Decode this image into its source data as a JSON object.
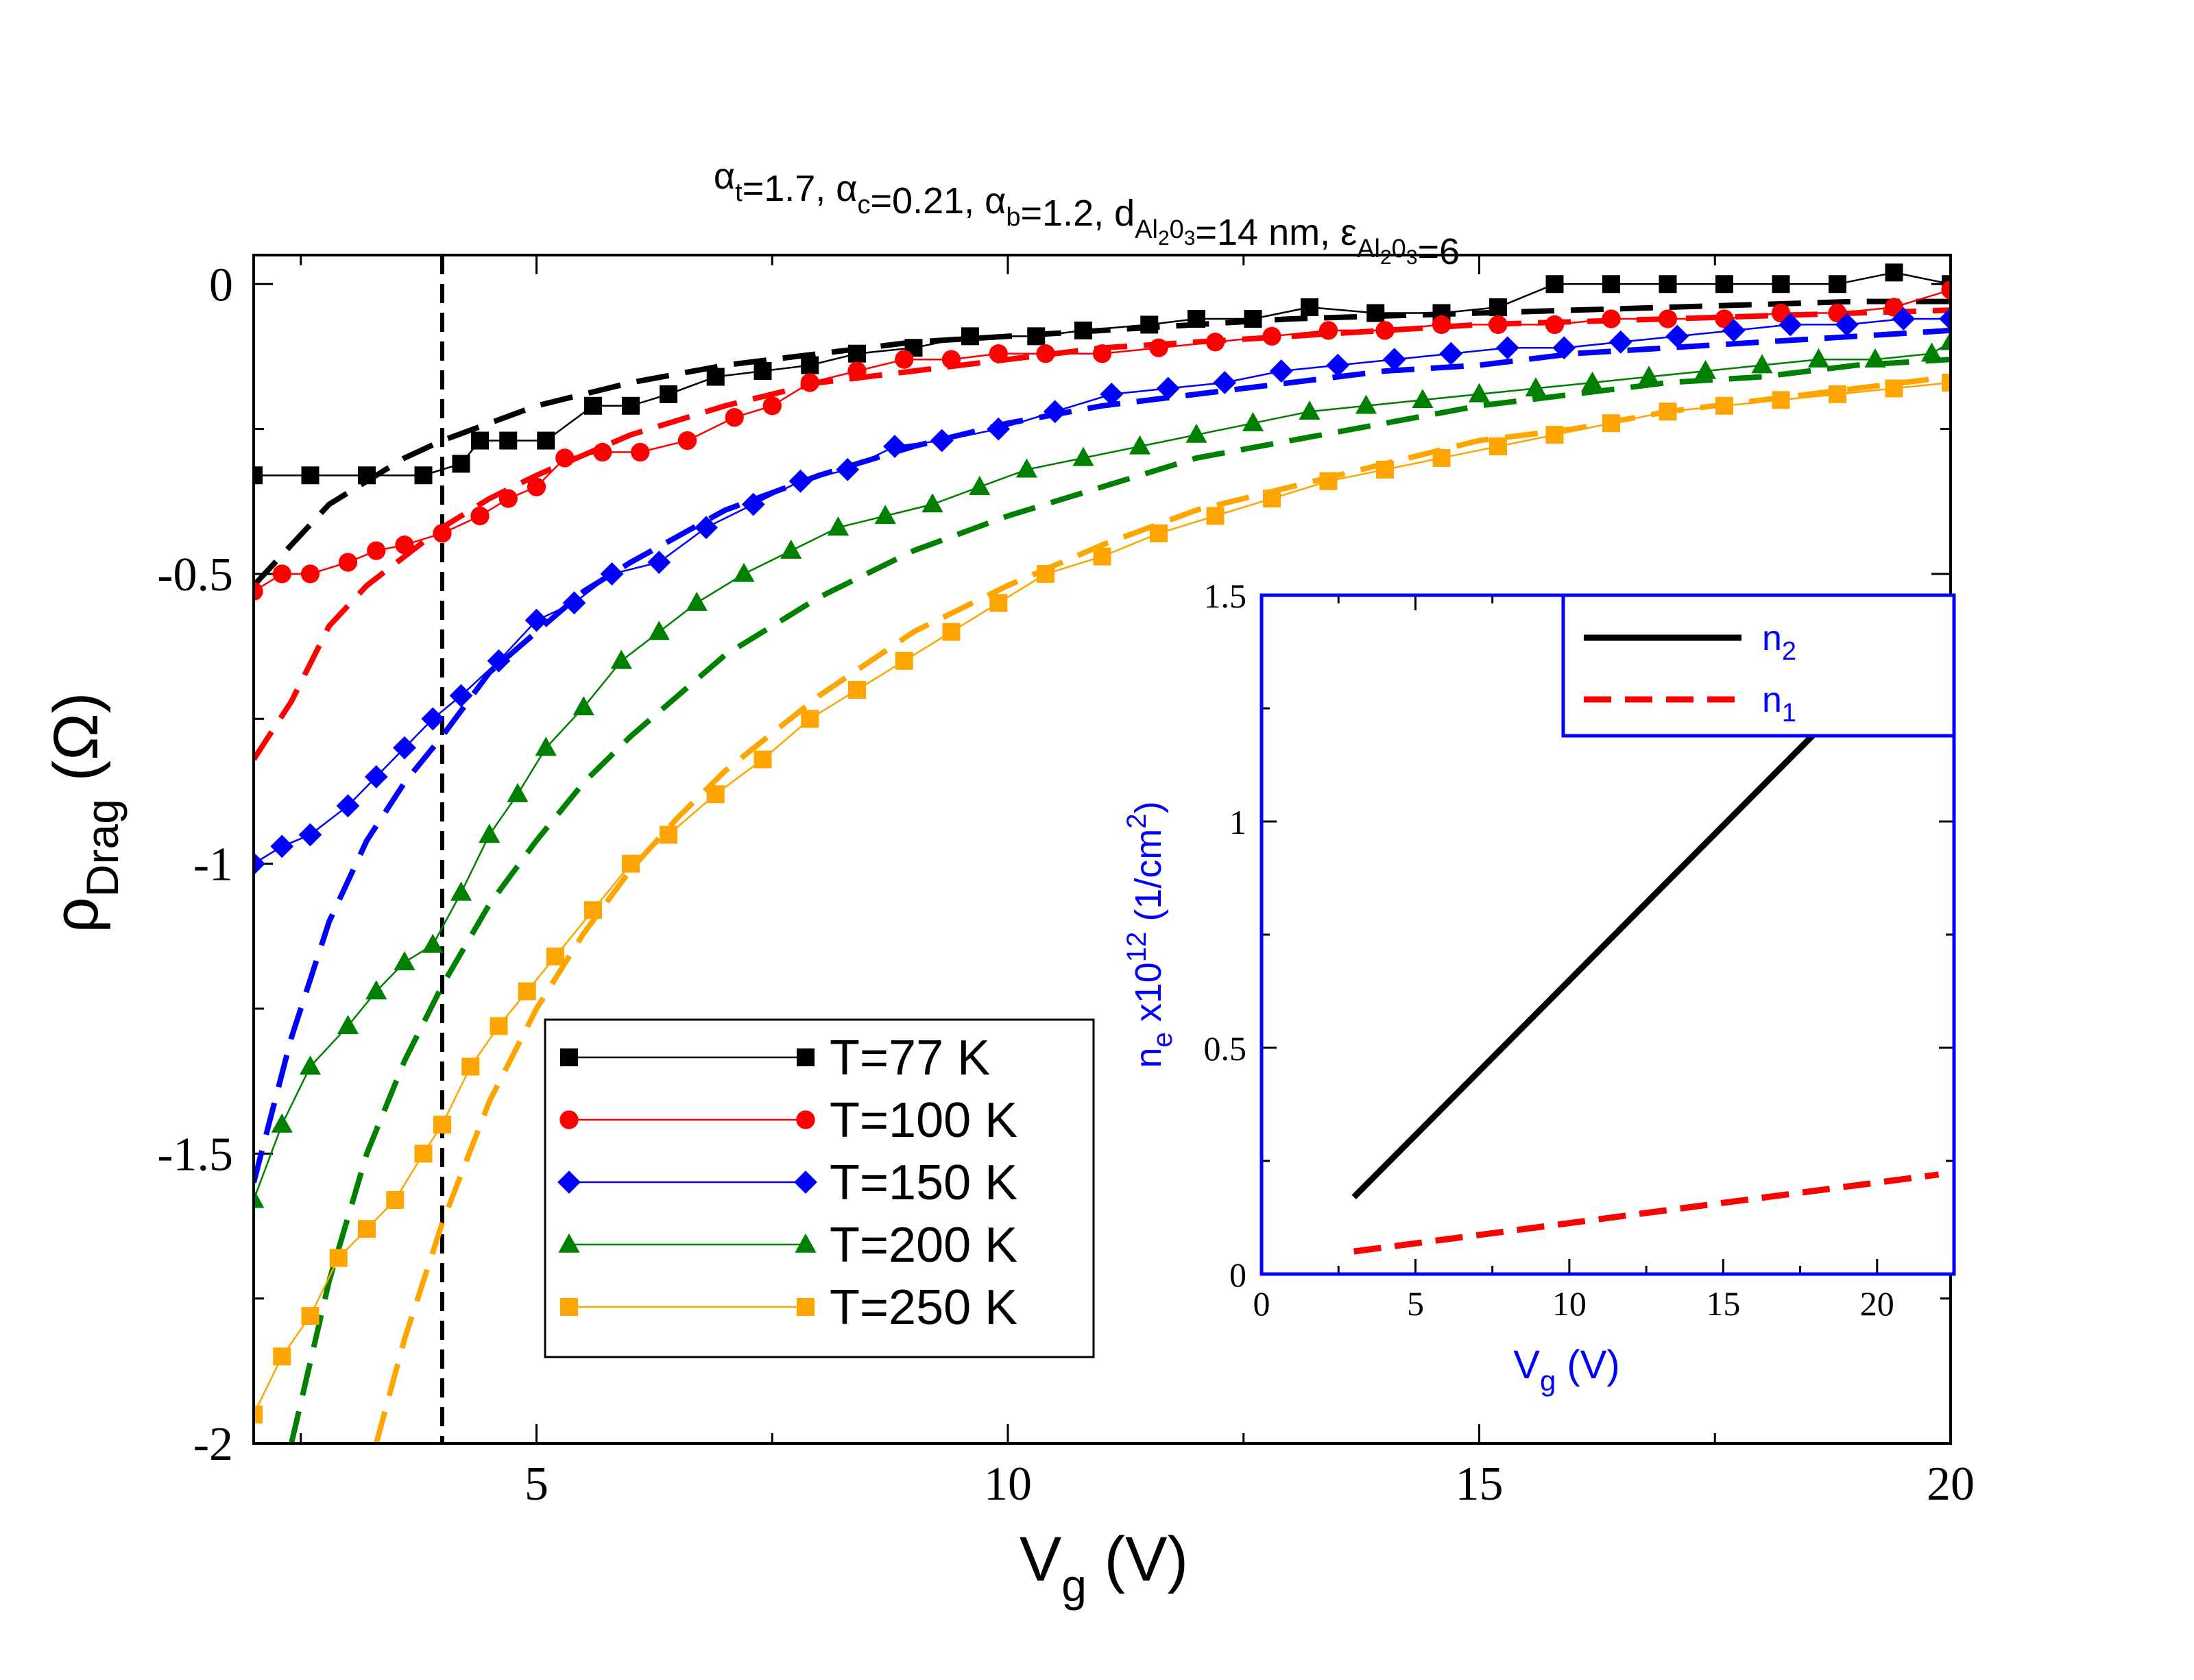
{
  "chart_data": [
    {
      "type": "line",
      "title": {
        "parts": [
          {
            "t": "α",
            "sub": "t"
          },
          {
            "t": "=1.7, "
          },
          {
            "t": "α",
            "sub": "c"
          },
          {
            "t": "=0.21, "
          },
          {
            "t": "α",
            "sub": "b"
          },
          {
            "t": "=1.2, "
          },
          {
            "t": "d",
            "sub": "Al",
            "sub2": "2",
            "sub3": "0",
            "sub4": "3"
          },
          {
            "t": "=14 nm, "
          },
          {
            "t": "ε",
            "sub": "Al",
            "sub2": "2",
            "sub3": "0",
            "sub4": "3"
          },
          {
            "t": "=6"
          }
        ]
      },
      "xlabel": {
        "main": "V",
        "sub": "g",
        "unit": "(V)"
      },
      "ylabel": {
        "main": "ρ",
        "sub": "Drag",
        "unit": "(Ω)"
      },
      "xlim": [
        2,
        20
      ],
      "ylim": [
        -2,
        0.05
      ],
      "x_ticks": [
        5,
        10,
        15,
        20
      ],
      "x_tick_labels": [
        "5",
        "10",
        "15",
        "20"
      ],
      "y_ticks": [
        0,
        -0.5,
        -1,
        -1.5,
        -2
      ],
      "y_tick_labels": [
        "0",
        "-0.5",
        "-1",
        "-1.5",
        "-2"
      ],
      "vline_x": 4,
      "legend_position": "bottom-center",
      "series": [
        {
          "name": "T=77 K",
          "color": "#000000",
          "marker": "square",
          "x": [
            2,
            2.6,
            3.2,
            3.8,
            4.2,
            4.4,
            4.7,
            5.1,
            5.6,
            6.0,
            6.4,
            6.9,
            7.4,
            7.9,
            8.4,
            9.0,
            9.6,
            10.3,
            10.8,
            11.5,
            12.0,
            12.6,
            13.2,
            13.9,
            14.6,
            15.2,
            15.8,
            16.4,
            17.0,
            17.6,
            18.2,
            18.8,
            19.4,
            20.0
          ],
          "y": [
            -0.33,
            -0.33,
            -0.33,
            -0.33,
            -0.31,
            -0.27,
            -0.27,
            -0.27,
            -0.21,
            -0.21,
            -0.19,
            -0.16,
            -0.15,
            -0.14,
            -0.12,
            -0.11,
            -0.09,
            -0.09,
            -0.08,
            -0.07,
            -0.06,
            -0.06,
            -0.04,
            -0.05,
            -0.05,
            -0.04,
            0.0,
            0.0,
            0.0,
            0.0,
            0.0,
            0.0,
            0.02,
            0.0
          ]
        },
        {
          "name": "T=100 K",
          "color": "#ff0000",
          "marker": "circle",
          "x": [
            2,
            2.3,
            2.6,
            3.0,
            3.3,
            3.6,
            4.0,
            4.4,
            4.7,
            5.0,
            5.3,
            5.7,
            6.1,
            6.6,
            7.1,
            7.5,
            7.9,
            8.4,
            8.9,
            9.4,
            9.9,
            10.4,
            11.0,
            11.6,
            12.2,
            12.8,
            13.4,
            14.0,
            14.6,
            15.2,
            15.8,
            16.4,
            17.0,
            17.6,
            18.2,
            18.8,
            19.4,
            20.0
          ],
          "y": [
            -0.53,
            -0.5,
            -0.5,
            -0.48,
            -0.46,
            -0.45,
            -0.43,
            -0.4,
            -0.37,
            -0.35,
            -0.3,
            -0.29,
            -0.29,
            -0.27,
            -0.23,
            -0.21,
            -0.17,
            -0.15,
            -0.13,
            -0.13,
            -0.12,
            -0.12,
            -0.12,
            -0.11,
            -0.1,
            -0.09,
            -0.08,
            -0.08,
            -0.07,
            -0.07,
            -0.07,
            -0.06,
            -0.06,
            -0.06,
            -0.05,
            -0.05,
            -0.04,
            -0.01
          ]
        },
        {
          "name": "T=150 K",
          "color": "#0000ff",
          "marker": "diamond",
          "x": [
            2,
            2.3,
            2.6,
            3.0,
            3.3,
            3.6,
            3.9,
            4.2,
            4.6,
            5.0,
            5.4,
            5.8,
            6.3,
            6.8,
            7.3,
            7.8,
            8.3,
            8.8,
            9.3,
            9.9,
            10.5,
            11.1,
            11.7,
            12.3,
            12.9,
            13.5,
            14.1,
            14.7,
            15.3,
            15.9,
            16.5,
            17.1,
            17.7,
            18.3,
            18.9,
            19.5,
            20.0
          ],
          "y": [
            -1.0,
            -0.97,
            -0.95,
            -0.9,
            -0.85,
            -0.8,
            -0.75,
            -0.71,
            -0.65,
            -0.58,
            -0.55,
            -0.5,
            -0.48,
            -0.42,
            -0.38,
            -0.34,
            -0.32,
            -0.28,
            -0.27,
            -0.25,
            -0.22,
            -0.19,
            -0.18,
            -0.17,
            -0.15,
            -0.14,
            -0.13,
            -0.12,
            -0.11,
            -0.11,
            -0.1,
            -0.09,
            -0.08,
            -0.07,
            -0.07,
            -0.06,
            -0.06
          ]
        },
        {
          "name": "T=200 K",
          "color": "#008000",
          "marker": "triangle",
          "x": [
            2,
            2.3,
            2.6,
            3.0,
            3.3,
            3.6,
            3.9,
            4.2,
            4.5,
            4.8,
            5.1,
            5.5,
            5.9,
            6.3,
            6.7,
            7.2,
            7.7,
            8.2,
            8.7,
            9.2,
            9.7,
            10.2,
            10.8,
            11.4,
            12.0,
            12.6,
            13.2,
            13.8,
            14.4,
            15.0,
            15.6,
            16.2,
            16.8,
            17.4,
            18.0,
            18.6,
            19.2,
            19.8,
            20.0
          ],
          "y": [
            -1.58,
            -1.45,
            -1.35,
            -1.28,
            -1.22,
            -1.17,
            -1.14,
            -1.05,
            -0.95,
            -0.88,
            -0.8,
            -0.73,
            -0.65,
            -0.6,
            -0.55,
            -0.5,
            -0.46,
            -0.42,
            -0.4,
            -0.38,
            -0.35,
            -0.32,
            -0.3,
            -0.28,
            -0.26,
            -0.24,
            -0.22,
            -0.21,
            -0.2,
            -0.19,
            -0.18,
            -0.17,
            -0.16,
            -0.15,
            -0.14,
            -0.13,
            -0.13,
            -0.12,
            -0.1
          ]
        },
        {
          "name": "T=250 K",
          "color": "#ffa500",
          "marker": "square",
          "x": [
            2,
            2.3,
            2.6,
            2.9,
            3.2,
            3.5,
            3.8,
            4.0,
            4.3,
            4.6,
            4.9,
            5.2,
            5.6,
            6.0,
            6.4,
            6.9,
            7.4,
            7.9,
            8.4,
            8.9,
            9.4,
            9.9,
            10.4,
            11.0,
            11.6,
            12.2,
            12.8,
            13.4,
            14.0,
            14.6,
            15.2,
            15.8,
            16.4,
            17.0,
            17.6,
            18.2,
            18.8,
            19.4,
            20.0
          ],
          "y": [
            -1.95,
            -1.85,
            -1.78,
            -1.68,
            -1.63,
            -1.58,
            -1.5,
            -1.45,
            -1.35,
            -1.28,
            -1.22,
            -1.16,
            -1.08,
            -1.0,
            -0.95,
            -0.88,
            -0.82,
            -0.75,
            -0.7,
            -0.65,
            -0.6,
            -0.55,
            -0.5,
            -0.47,
            -0.43,
            -0.4,
            -0.37,
            -0.34,
            -0.32,
            -0.3,
            -0.28,
            -0.26,
            -0.24,
            -0.22,
            -0.21,
            -0.2,
            -0.19,
            -0.18,
            -0.17
          ]
        }
      ],
      "theory_series": [
        {
          "color": "#000000",
          "x": [
            2,
            2.4,
            2.8,
            3.2,
            3.6,
            4.0,
            4.5,
            5.0,
            6.0,
            7.0,
            8.0,
            9.0,
            10.0,
            11.0,
            12.0,
            13.0,
            14.0,
            15.0,
            16.0,
            17.0,
            18.0,
            19.0,
            20.0
          ],
          "y": [
            -0.52,
            -0.45,
            -0.38,
            -0.34,
            -0.3,
            -0.27,
            -0.24,
            -0.21,
            -0.17,
            -0.14,
            -0.12,
            -0.1,
            -0.09,
            -0.08,
            -0.07,
            -0.06,
            -0.055,
            -0.05,
            -0.045,
            -0.04,
            -0.035,
            -0.03,
            -0.03
          ]
        },
        {
          "color": "#ff0000",
          "x": [
            2,
            2.4,
            2.8,
            3.2,
            3.6,
            4.0,
            4.5,
            5.0,
            6.0,
            7.0,
            8.0,
            9.0,
            10.0,
            11.0,
            12.0,
            13.0,
            14.0,
            15.0,
            16.0,
            17.0,
            18.0,
            19.0,
            20.0
          ],
          "y": [
            -0.82,
            -0.72,
            -0.59,
            -0.52,
            -0.47,
            -0.42,
            -0.37,
            -0.33,
            -0.26,
            -0.21,
            -0.17,
            -0.15,
            -0.13,
            -0.11,
            -0.1,
            -0.09,
            -0.08,
            -0.07,
            -0.065,
            -0.06,
            -0.055,
            -0.05,
            -0.045
          ]
        },
        {
          "color": "#0000ff",
          "x": [
            2,
            2.4,
            2.8,
            3.2,
            3.6,
            4.0,
            4.5,
            5.0,
            5.5,
            6.0,
            7.0,
            8.0,
            9.0,
            10.0,
            11.0,
            12.0,
            13.0,
            14.0,
            15.0,
            16.0,
            17.0,
            18.0,
            19.0,
            20.0
          ],
          "y": [
            -1.55,
            -1.3,
            -1.1,
            -0.96,
            -0.86,
            -0.78,
            -0.67,
            -0.6,
            -0.53,
            -0.48,
            -0.39,
            -0.33,
            -0.28,
            -0.24,
            -0.21,
            -0.19,
            -0.17,
            -0.15,
            -0.14,
            -0.12,
            -0.11,
            -0.1,
            -0.09,
            -0.08
          ]
        },
        {
          "color": "#008000",
          "x": [
            2.4,
            2.8,
            3.2,
            3.6,
            4.0,
            4.5,
            5.0,
            5.5,
            6.0,
            7.0,
            8.0,
            9.0,
            10.0,
            11.0,
            12.0,
            13.0,
            14.0,
            15.0,
            16.0,
            17.0,
            18.0,
            19.0,
            20.0
          ],
          "y": [
            -2.0,
            -1.72,
            -1.5,
            -1.34,
            -1.21,
            -1.07,
            -0.96,
            -0.86,
            -0.78,
            -0.64,
            -0.54,
            -0.46,
            -0.4,
            -0.35,
            -0.3,
            -0.27,
            -0.24,
            -0.21,
            -0.19,
            -0.17,
            -0.16,
            -0.14,
            -0.13
          ]
        },
        {
          "color": "#ffa500",
          "x": [
            3.3,
            3.6,
            4.0,
            4.5,
            5.0,
            5.5,
            6.0,
            6.5,
            7.0,
            8.0,
            9.0,
            10.0,
            11.0,
            12.0,
            13.0,
            14.0,
            15.0,
            16.0,
            17.0,
            18.0,
            19.0,
            20.0
          ],
          "y": [
            -2.0,
            -1.82,
            -1.62,
            -1.41,
            -1.25,
            -1.12,
            -1.01,
            -0.92,
            -0.84,
            -0.71,
            -0.6,
            -0.52,
            -0.45,
            -0.39,
            -0.35,
            -0.31,
            -0.27,
            -0.25,
            -0.22,
            -0.2,
            -0.18,
            -0.16
          ]
        }
      ]
    },
    {
      "type": "line",
      "role": "inset",
      "xlabel": {
        "main": "V",
        "sub": "g",
        "unit": "(V)"
      },
      "ylabel": {
        "main": "n",
        "sub": "e",
        "mid": " x10",
        "sup": "12",
        "unit": " (1/cm",
        "sup2": "2",
        "close": ")"
      },
      "xlim": [
        0,
        22.5
      ],
      "ylim": [
        0,
        1.5
      ],
      "x_ticks": [
        0,
        5,
        10,
        15,
        20
      ],
      "x_tick_labels": [
        "0",
        "5",
        "10",
        "15",
        "20"
      ],
      "y_ticks": [
        0,
        0.5,
        1,
        1.5
      ],
      "y_tick_labels": [
        "0",
        "0.5",
        "1",
        "1.5"
      ],
      "legend_position": "top-right",
      "series": [
        {
          "name": "n",
          "sub": "2",
          "color": "#000000",
          "dash": false,
          "x": [
            3,
            22
          ],
          "y": [
            0.17,
            1.47
          ]
        },
        {
          "name": "n",
          "sub": "1",
          "color": "#ff0000",
          "dash": true,
          "x": [
            3,
            22
          ],
          "y": [
            0.05,
            0.22
          ]
        }
      ]
    }
  ]
}
